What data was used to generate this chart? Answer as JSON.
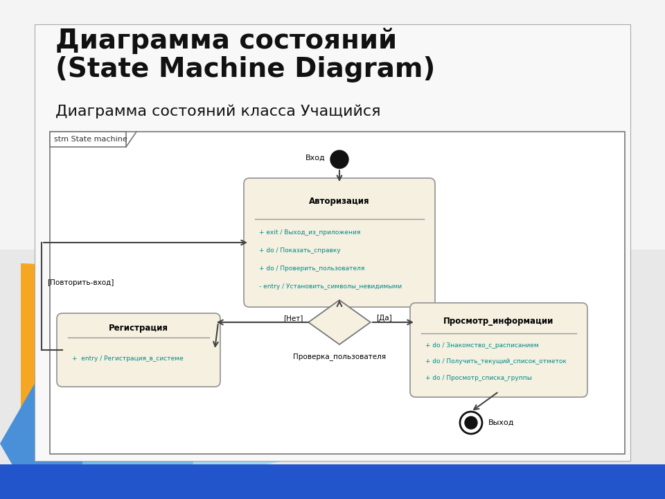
{
  "title": "Диаграмма состояний\n(State Machine Diagram)",
  "subtitle": "Диаграмма состояний класса Учащийся",
  "frame_label": "stm State machine",
  "state_fill": "#f5f0e0",
  "state_stroke": "#999999",
  "teal_text": "#008B8B",
  "arrow_color": "#444444",
  "avt_title": "Авторизация",
  "avt_lines": [
    "+ exit / Выход_из_приложения",
    "+ do / Показать_справку",
    "+ do / Проверить_пользователя",
    "- entry / Установить_символы_невидимыми"
  ],
  "reg_title": "Регистрация",
  "reg_lines": [
    "+  entry / Регистрация_в_системе"
  ],
  "prosm_title": "Просмотр_информации",
  "prosm_lines": [
    "+ do / Знакомство_с_расписанием",
    "+ do / Получить_текущий_список_отметок",
    "+ do / Просмотр_списка_группы"
  ],
  "vhod_text": "Вход",
  "vyhod_text": "Выход",
  "proverka_text": "Проверка_пользователя",
  "net_text": "[Нет]",
  "da_text": "[Да]",
  "povtorit_text": "[Повторить-вход]"
}
